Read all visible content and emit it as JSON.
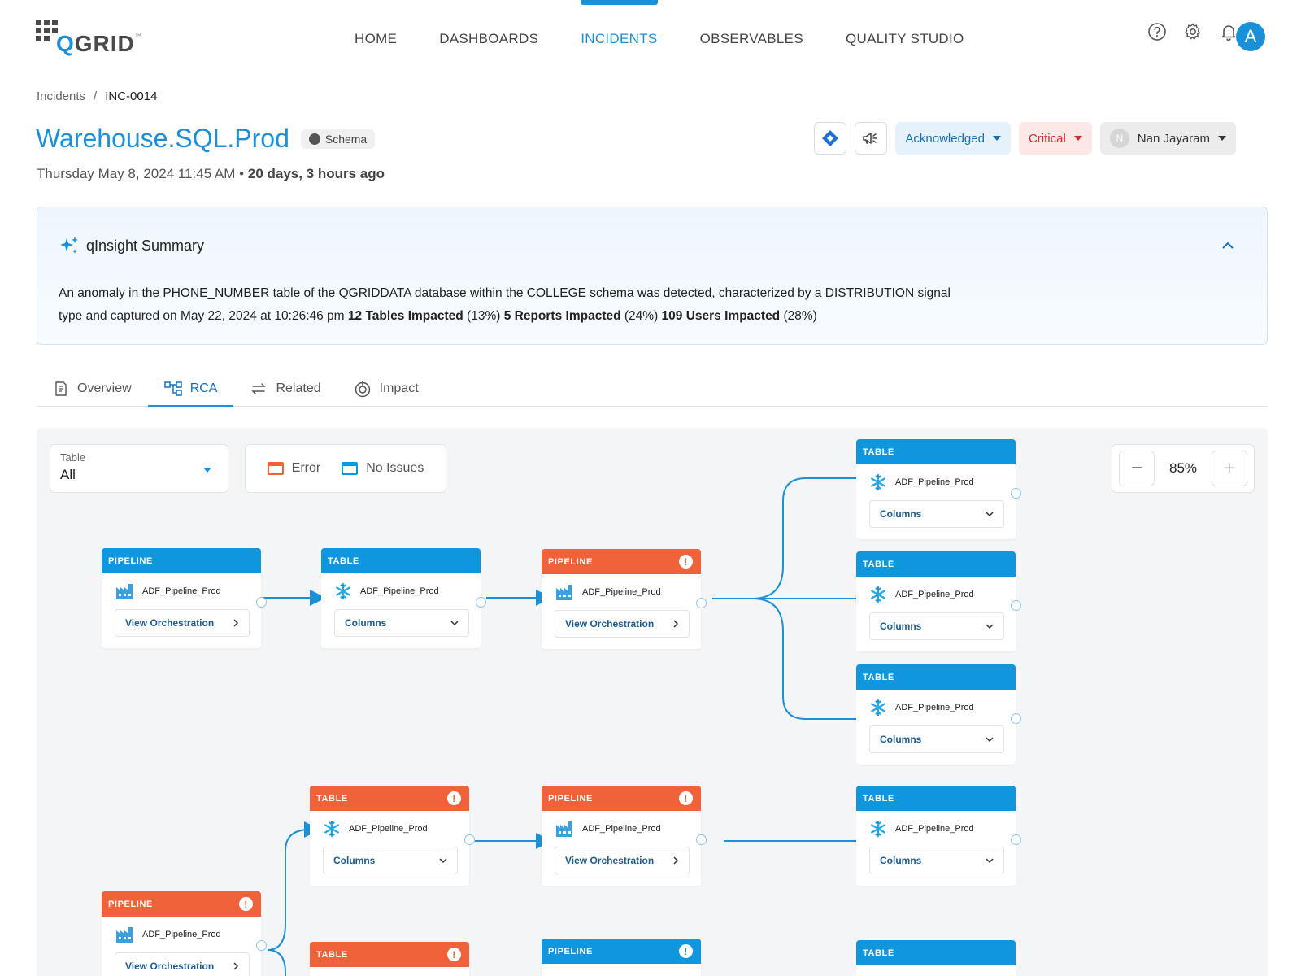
{
  "header": {
    "logo_text_q": "Q",
    "logo_text_rest": "GRID",
    "logo_tm": "™",
    "nav": [
      {
        "label": "HOME",
        "active": false
      },
      {
        "label": "DASHBOARDS",
        "active": false
      },
      {
        "label": "INCIDENTS",
        "active": true
      },
      {
        "label": "OBSERVABLES",
        "active": false
      },
      {
        "label": "QUALITY STUDIO",
        "active": false
      }
    ],
    "icons": [
      "help-icon",
      "settings-gear-icon",
      "notification-bell-icon"
    ],
    "avatar_initial": "A"
  },
  "breadcrumb": {
    "parent": "Incidents",
    "separator": "/",
    "current": "INC-0014"
  },
  "incident": {
    "title": "Warehouse.SQL.Prod",
    "chip": "Schema",
    "date": "Thursday May 8, 2024 11:45 AM",
    "bullet": "•",
    "age": "20 days, 3 hours ago",
    "status": "Acknowledged",
    "severity": "Critical",
    "assignee_initial": "N",
    "assignee": "Nan Jayaram"
  },
  "summary": {
    "title": "qInsight Summary",
    "text_1": "An anomaly in the PHONE_NUMBER table of the QGRIDDATA database within the COLLEGE schema was detected, characterized by a DISTRIBUTION signal type and captured on May 22, 2024 at 10:26:46 pm ",
    "tables_bold": "12 Tables Impacted",
    "tables_pct": " (13%) ",
    "reports_bold": "5 Reports Impacted",
    "reports_pct": " (24%) ",
    "users_bold": "109 Users Impacted",
    "users_pct": " (28%)"
  },
  "tabs": [
    {
      "label": "Overview",
      "active": false
    },
    {
      "label": "RCA",
      "active": true
    },
    {
      "label": "Related",
      "active": false
    },
    {
      "label": "Impact",
      "active": false
    }
  ],
  "rca": {
    "filter_label": "Table",
    "filter_value": "All",
    "legend_error": "Error",
    "legend_ok": "No Issues",
    "zoom": "85%",
    "zoom_minus": "−",
    "zoom_plus": "+",
    "colors": {
      "ok": "#0f96dd",
      "error": "#f0633a"
    },
    "nodes": [
      {
        "type": "PIPELINE",
        "status": "ok",
        "name": "ADF_Pipeline_Prod",
        "action": "View Orchestration"
      },
      {
        "type": "TABLE",
        "status": "ok",
        "name": "ADF_Pipeline_Prod",
        "action": "Columns"
      },
      {
        "type": "PIPELINE",
        "status": "error",
        "name": "ADF_Pipeline_Prod",
        "action": "View Orchestration"
      },
      {
        "type": "TABLE",
        "status": "ok",
        "name": "ADF_Pipeline_Prod",
        "action": "Columns"
      },
      {
        "type": "TABLE",
        "status": "ok",
        "name": "ADF_Pipeline_Prod",
        "action": "Columns"
      },
      {
        "type": "TABLE",
        "status": "ok",
        "name": "ADF_Pipeline_Prod",
        "action": "Columns"
      },
      {
        "type": "TABLE",
        "status": "error",
        "name": "ADF_Pipeline_Prod",
        "action": "Columns"
      },
      {
        "type": "PIPELINE",
        "status": "error",
        "name": "ADF_Pipeline_Prod",
        "action": "View Orchestration"
      },
      {
        "type": "TABLE",
        "status": "ok",
        "name": "ADF_Pipeline_Prod",
        "action": "Columns"
      },
      {
        "type": "PIPELINE",
        "status": "error",
        "name": "ADF_Pipeline_Prod",
        "action": "View Orchestration"
      },
      {
        "type": "TABLE",
        "status": "error",
        "name": "",
        "action": ""
      },
      {
        "type": "PIPELINE",
        "status": "ok",
        "name": "",
        "action": ""
      },
      {
        "type": "TABLE",
        "status": "ok",
        "name": "",
        "action": ""
      }
    ]
  }
}
